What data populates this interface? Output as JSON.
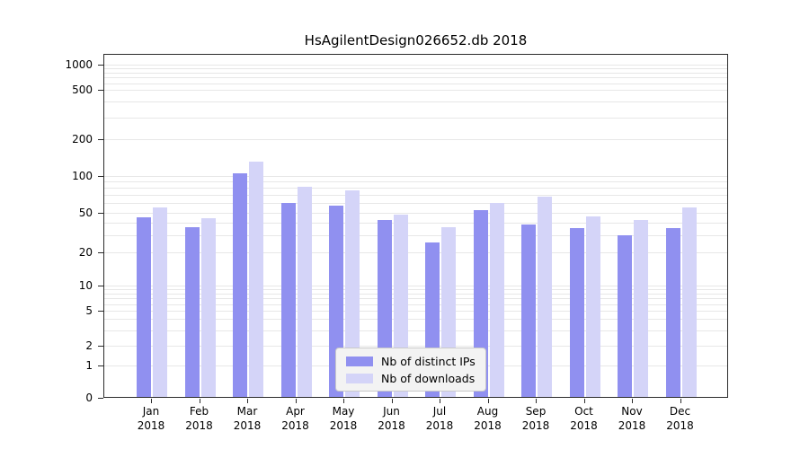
{
  "chart_data": {
    "type": "bar",
    "title": "HsAgilentDesign026652.db 2018",
    "categories": [
      "Jan",
      "Feb",
      "Mar",
      "Apr",
      "May",
      "Jun",
      "Jul",
      "Aug",
      "Sep",
      "Oct",
      "Nov",
      "Dec"
    ],
    "year": "2018",
    "series": [
      {
        "name": "Nb of distinct IPs",
        "color": "#9090f0",
        "values": [
          45,
          36,
          105,
          60,
          57,
          42,
          25,
          53,
          38,
          35,
          30,
          35
        ]
      },
      {
        "name": "Nb of downloads",
        "color": "#d4d4f8",
        "values": [
          55,
          44,
          130,
          82,
          76,
          48,
          36,
          60,
          68,
          46,
          42,
          55
        ]
      }
    ],
    "y_ticks": [
      0,
      1,
      2,
      5,
      10,
      20,
      50,
      100,
      200,
      500,
      1000
    ],
    "y_scale": "symlog",
    "ylim": [
      0,
      1400
    ],
    "xlabel": "",
    "ylabel": "",
    "grid": "horizontal",
    "gridline_values": [
      1,
      2,
      3,
      4,
      5,
      6,
      7,
      8,
      9,
      10,
      20,
      30,
      40,
      50,
      60,
      70,
      80,
      90,
      100,
      200,
      300,
      400,
      500,
      600,
      700,
      800,
      900,
      1000
    ],
    "legend_position": "lower-center"
  },
  "colors": {
    "distinct_ips": "#9090f0",
    "downloads": "#d4d4f8",
    "gridline": "#e7e7e7",
    "axis": "#2b2b2b"
  }
}
